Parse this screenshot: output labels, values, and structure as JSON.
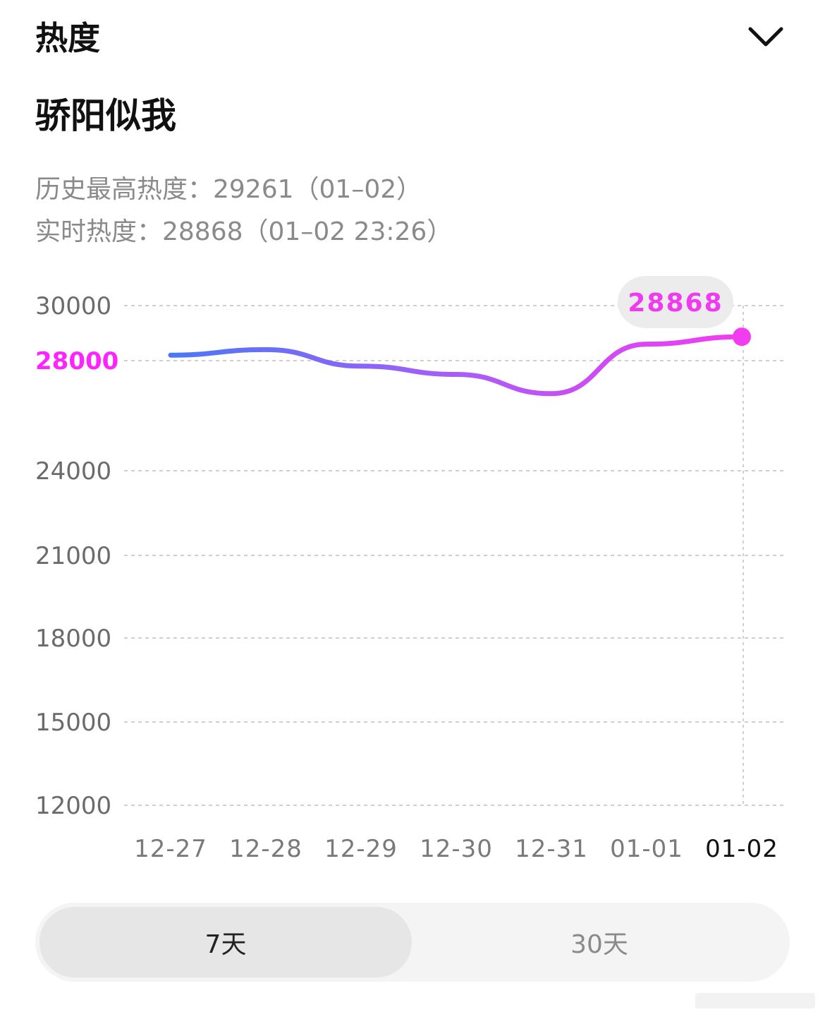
{
  "header": {
    "title": "热度"
  },
  "topic": {
    "title": "骄阳似我"
  },
  "stats": {
    "history_max": "历史最高热度：29261（01–02）",
    "realtime": "实时热度：28868（01–02 23:26）"
  },
  "chart_data": {
    "type": "line",
    "x": [
      "12-27",
      "12-28",
      "12-29",
      "12-30",
      "12-31",
      "01-01",
      "01-02"
    ],
    "y_ticks": [
      30000,
      28000,
      24000,
      21000,
      18000,
      15000,
      12000
    ],
    "highlight_tick": 28000,
    "ylim": [
      12000,
      30000
    ],
    "grid": true,
    "series": [
      {
        "values": [
          28200,
          28400,
          27800,
          27500,
          26800,
          28600,
          28868
        ]
      }
    ],
    "tooltip": {
      "x": "01-02",
      "value": "28868"
    },
    "colors": {
      "start": "#4a78f5",
      "mid": "#a95cf8",
      "end": "#f23cf0"
    }
  },
  "range_selector": {
    "options": [
      {
        "label": "7天",
        "selected": true
      },
      {
        "label": "30天",
        "selected": false
      }
    ]
  }
}
